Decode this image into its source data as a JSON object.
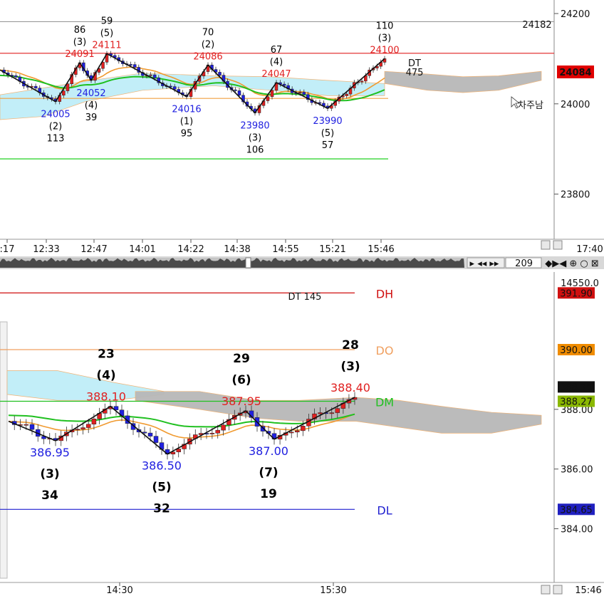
{
  "chart_data": [
    {
      "type": "candlestick",
      "panel": "top",
      "ylim": [
        23700,
        24230
      ],
      "y_ticks": [
        "24200",
        "24000",
        "23800"
      ],
      "x_ticks": [
        ":17",
        "12:33",
        "12:47",
        "14:01",
        "14:22",
        "14:38",
        "14:55",
        "15:21",
        "15:46"
      ],
      "time_readout": "17:40",
      "price_badge": "24084",
      "ref_level_label": "24182",
      "ref_levels": [
        {
          "name": "high",
          "value": 24182,
          "color": "#9a9a9a"
        },
        {
          "name": "resistance",
          "value": 24112,
          "color": "#e02020"
        },
        {
          "name": "open",
          "value": 24012,
          "color": "#f0a040"
        },
        {
          "name": "support",
          "value": 23878,
          "color": "#20d020"
        }
      ],
      "swing_labels": [
        {
          "price": "24005",
          "count": "(2)",
          "bars": "113",
          "dir": "low"
        },
        {
          "price": "24091",
          "count": "(3)",
          "bars": "86",
          "dir": "high"
        },
        {
          "price": "24052",
          "count": "(4)",
          "bars": "39",
          "dir": "low"
        },
        {
          "price": "24111",
          "count": "(5)",
          "bars": "59",
          "dir": "high"
        },
        {
          "price": "24016",
          "count": "(1)",
          "bars": "95",
          "dir": "low"
        },
        {
          "price": "24086",
          "count": "(2)",
          "bars": "70",
          "dir": "high"
        },
        {
          "price": "23980",
          "count": "(3)",
          "bars": "106",
          "dir": "low"
        },
        {
          "price": "24047",
          "count": "(4)",
          "bars": "67",
          "dir": "high"
        },
        {
          "price": "23990",
          "count": "(5)",
          "bars": "57",
          "dir": "low"
        },
        {
          "price": "24100",
          "count": "(3)",
          "bars": "110",
          "dir": "high"
        }
      ],
      "dt_label": "DT",
      "dt_value": "475",
      "cursor_text": "차주남",
      "scroll_value": "209"
    },
    {
      "type": "candlestick",
      "panel": "bottom",
      "ylim": [
        382.2,
        392.6
      ],
      "y_ticks": [
        "388.00",
        "386.00",
        "384.00"
      ],
      "top_label": "14550.0",
      "x_ticks": [
        "14:30",
        "15:30"
      ],
      "time_readout": "15:46",
      "title": "DT 145",
      "levels": [
        {
          "label": "DH",
          "value": 391.9,
          "badge": "391.90",
          "color": "#d01010",
          "badge_bg": "#d01010"
        },
        {
          "label": "DO",
          "value": 390.0,
          "badge": "390.00",
          "color": "#f0a060",
          "badge_bg": "#f08c00"
        },
        {
          "label": "DM",
          "value": 388.27,
          "badge": "388.27",
          "color": "#20c020",
          "badge_bg": "#8ab800"
        },
        {
          "label": "DL",
          "value": 384.65,
          "badge": "384.65",
          "color": "#2020d0",
          "badge_bg": "#2020c0"
        }
      ],
      "last_badge": "388.75",
      "swing_labels": [
        {
          "price": "386.95",
          "count": "(3)",
          "bars": "34",
          "dir": "low"
        },
        {
          "price": "388.10",
          "count": "(4)",
          "bars": "23",
          "dir": "high"
        },
        {
          "price": "386.50",
          "count": "(5)",
          "bars": "32",
          "dir": "low"
        },
        {
          "price": "387.95",
          "count": "(6)",
          "bars": "29",
          "dir": "high"
        },
        {
          "price": "387.00",
          "count": "(7)",
          "bars": "19",
          "dir": "low"
        },
        {
          "price": "388.40",
          "count": "(3)",
          "bars": "28",
          "dir": "high"
        }
      ]
    }
  ],
  "colors": {
    "up": "#e02020",
    "down": "#2020e0",
    "cloud_bull": "#bfeef8",
    "cloud_bear": "#b8b8b8",
    "ma_orange": "#f09a30",
    "ma_green": "#20c020"
  },
  "icons": [
    "zoom-icon",
    "lock-icon",
    "scroll-prev-icon",
    "scroll-next-icon",
    "cursor-icon"
  ]
}
